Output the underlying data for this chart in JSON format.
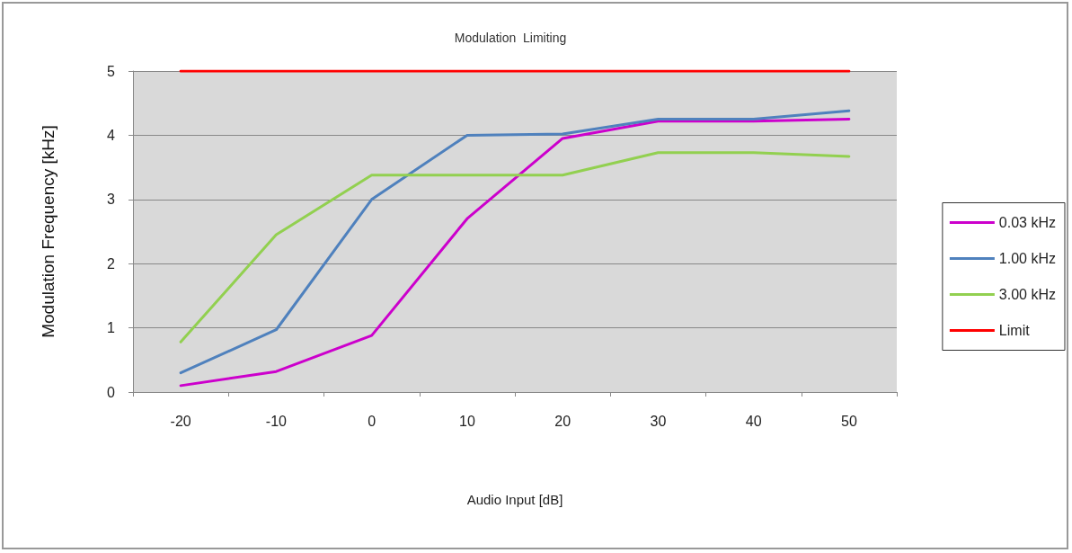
{
  "chart_data": {
    "type": "line",
    "title": "Modulation  Limiting",
    "xlabel": "Audio Input [dB]",
    "ylabel": "Modulation Frequency [kHz]",
    "categories": [
      "-20",
      "-10",
      "0",
      "10",
      "20",
      "30",
      "40",
      "50"
    ],
    "series": [
      {
        "name": "0.03 kHz",
        "color": "#cc00cc",
        "values": [
          0.1,
          0.32,
          0.88,
          2.7,
          3.95,
          4.22,
          4.22,
          4.25
        ]
      },
      {
        "name": "1.00 kHz",
        "color": "#4f81bd",
        "values": [
          0.3,
          0.97,
          3.0,
          4.0,
          4.02,
          4.25,
          4.25,
          4.38
        ]
      },
      {
        "name": "3.00 kHz",
        "color": "#92d050",
        "values": [
          0.78,
          2.45,
          3.38,
          3.38,
          3.38,
          3.73,
          3.73,
          3.67
        ]
      },
      {
        "name": "Limit",
        "color": "#ff0000",
        "values": [
          5,
          5,
          5,
          5,
          5,
          5,
          5,
          5
        ]
      }
    ],
    "ylim": [
      0,
      5
    ],
    "yticks": [
      0,
      1,
      2,
      3,
      4,
      5
    ],
    "grid": "y",
    "legend": "right",
    "marker": "none",
    "line_style": "solid"
  }
}
